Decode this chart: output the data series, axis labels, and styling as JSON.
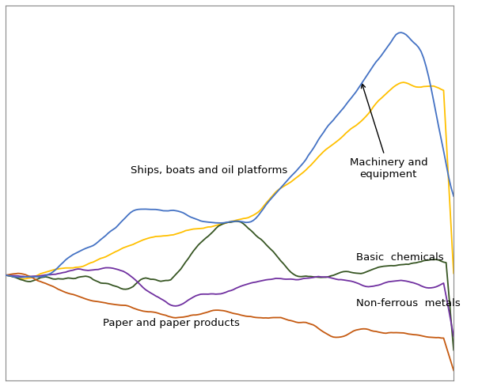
{
  "title": "",
  "background_color": "#ffffff",
  "grid_color": "#cccccc",
  "figsize": [
    6.09,
    4.88
  ],
  "dpi": 100,
  "series": {
    "ships": {
      "color": "#4472C4",
      "label": "Ships, boats and oil platforms"
    },
    "machinery": {
      "color": "#FFC000",
      "label": "Machinery and\nequipment"
    },
    "chemicals": {
      "color": "#375623",
      "label": "Basic  chemicals"
    },
    "nonferrous": {
      "color": "#7030A0",
      "label": "Non-ferrous  metals"
    },
    "paper": {
      "color": "#C55A11",
      "label": "Paper and paper products"
    }
  },
  "n_points": 180,
  "spine_color": "#888888"
}
